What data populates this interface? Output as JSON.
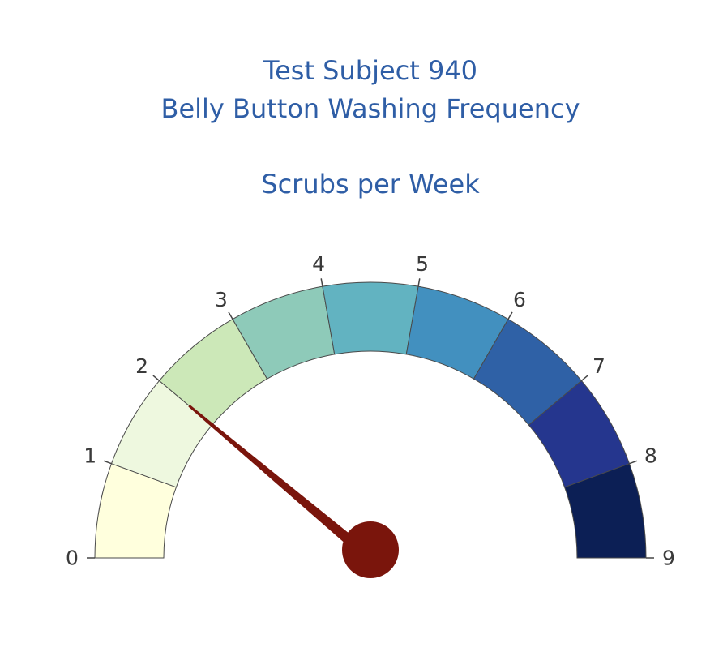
{
  "chart_data": {
    "type": "gauge",
    "title_line1": "Test Subject 940",
    "title_line2": "Belly Button Washing Frequency",
    "subtitle": "Scrubs per Week",
    "min": 0,
    "max": 9,
    "value": 2,
    "tick_labels": [
      "0",
      "1",
      "2",
      "3",
      "4",
      "5",
      "6",
      "7",
      "8",
      "9"
    ],
    "band_colors": [
      "#ffffdd",
      "#eef8df",
      "#cce8b8",
      "#8ecab9",
      "#62b3c1",
      "#4290bf",
      "#2f61a6",
      "#25368e",
      "#0c1f55"
    ],
    "needle_color": "#7a150c"
  }
}
